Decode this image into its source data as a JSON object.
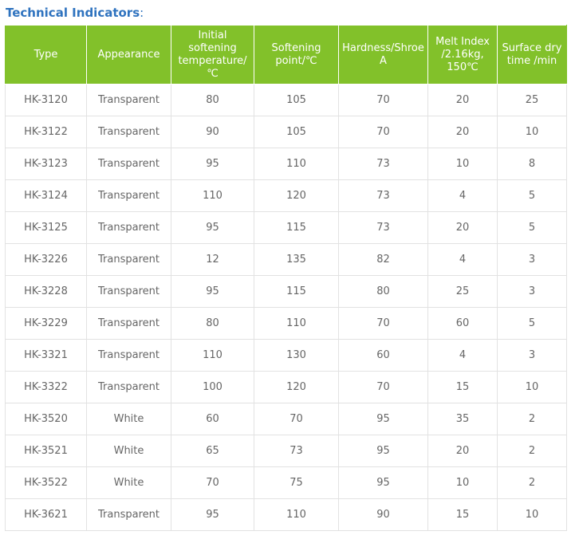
{
  "page": {
    "title": "Technical Indicators",
    "title_suffix": ":"
  },
  "colors": {
    "title": "#2f73bf",
    "header_bg": "#82c12a",
    "header_text": "#ffffff",
    "cell_text": "#666666",
    "border": "#e2e2e2"
  },
  "table": {
    "headers": [
      "Type",
      "Appearance",
      "Initial softening temperature/℃",
      "Softening point/℃",
      "Hardness/Shroe A",
      "Melt Index /2.16kg, 150℃",
      "Surface dry time /min"
    ],
    "rows": [
      [
        "HK-3120",
        "Transparent",
        "80",
        "105",
        "70",
        "20",
        "25"
      ],
      [
        "HK-3122",
        "Transparent",
        "90",
        "105",
        "70",
        "20",
        "10"
      ],
      [
        "HK-3123",
        "Transparent",
        "95",
        "110",
        "73",
        "10",
        "8"
      ],
      [
        "HK-3124",
        "Transparent",
        "110",
        "120",
        "73",
        "4",
        "5"
      ],
      [
        "HK-3125",
        "Transparent",
        "95",
        "115",
        "73",
        "20",
        "5"
      ],
      [
        "HK-3226",
        "Transparent",
        "12",
        "135",
        "82",
        "4",
        "3"
      ],
      [
        "HK-3228",
        "Transparent",
        "95",
        "115",
        "80",
        "25",
        "3"
      ],
      [
        "HK-3229",
        "Transparent",
        "80",
        "110",
        "70",
        "60",
        "5"
      ],
      [
        "HK-3321",
        "Transparent",
        "110",
        "130",
        "60",
        "4",
        "3"
      ],
      [
        "HK-3322",
        "Transparent",
        "100",
        "120",
        "70",
        "15",
        "10"
      ],
      [
        "HK-3520",
        "White",
        "60",
        "70",
        "95",
        "35",
        "2"
      ],
      [
        "HK-3521",
        "White",
        "65",
        "73",
        "95",
        "20",
        "2"
      ],
      [
        "HK-3522",
        "White",
        "70",
        "75",
        "95",
        "10",
        "2"
      ],
      [
        "HK-3621",
        "Transparent",
        "95",
        "110",
        "90",
        "15",
        "10"
      ]
    ]
  }
}
